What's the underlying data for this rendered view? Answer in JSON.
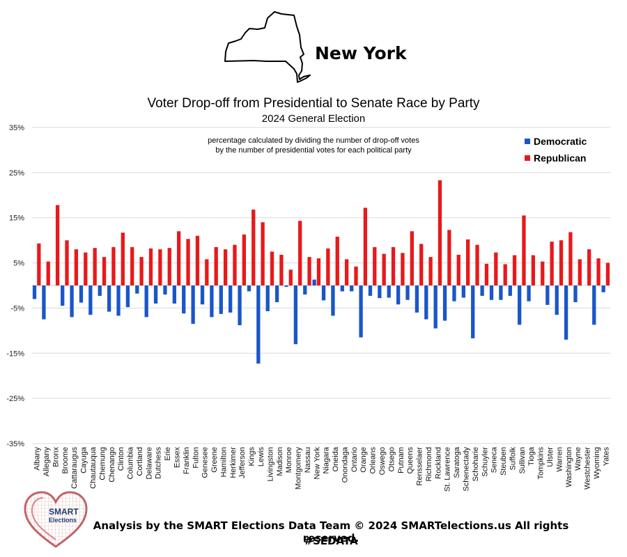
{
  "header": {
    "state_name": "New York"
  },
  "chart_data": {
    "type": "bar",
    "title": "Voter Drop-off from Presidential to Senate Race by Party",
    "subtitle": "2024 General Election",
    "note_line1": "percentage calculated by dividing the number of drop-off votes",
    "note_line2": "by the number of presidential votes for each political party",
    "ylim": [
      -35,
      35
    ],
    "yticks": [
      {
        "value": 35,
        "label": "35%"
      },
      {
        "value": 25,
        "label": "25%"
      },
      {
        "value": 15,
        "label": "15%"
      },
      {
        "value": 5,
        "label": "5%"
      },
      {
        "value": -5,
        "label": "-5%"
      },
      {
        "value": -15,
        "label": "-15%"
      },
      {
        "value": -25,
        "label": "-25%"
      },
      {
        "value": -35,
        "label": "-35%"
      }
    ],
    "legend_position": "top-right",
    "categories": [
      "Albany",
      "Allegany",
      "Bronx",
      "Broome",
      "Cattaraugus",
      "Cayuga",
      "Chautauqua",
      "Chemung",
      "Chenango",
      "Clinton",
      "Columbia",
      "Cortland",
      "Delaware",
      "Dutchess",
      "Erie",
      "Essex",
      "Franklin",
      "Fulton",
      "Genesee",
      "Greene",
      "Hamilton",
      "Herkimer",
      "Jefferson",
      "Kings",
      "Lewis",
      "Livingston",
      "Madison",
      "Monroe",
      "Montgomery",
      "Nassau",
      "New York",
      "Niagara",
      "Oneida",
      "Onondaga",
      "Ontario",
      "Orange",
      "Orleans",
      "Oswego",
      "Otsego",
      "Putnam",
      "Queens",
      "Rensselaer",
      "Richmond",
      "Rockland",
      "St. Lawrence",
      "Saratoga",
      "Schenectady",
      "Schoharie",
      "Schuyler",
      "Seneca",
      "Steuben",
      "Suffolk",
      "Sullivan",
      "Tioga",
      "Tompkins",
      "Ulster",
      "Warren",
      "Washington",
      "Wayne",
      "Westchester",
      "Wyoming",
      "Yates"
    ],
    "series": [
      {
        "name": "Democratic",
        "color": "#1a56c9",
        "values": [
          -3.0,
          -7.5,
          0,
          -4.5,
          -7.0,
          -3.8,
          -6.5,
          -2.3,
          -5.8,
          -6.7,
          -4.8,
          -1.8,
          -7.0,
          -4.0,
          -2.0,
          -4.0,
          -6.2,
          -8.5,
          -4.2,
          -7.0,
          -6.3,
          -6.0,
          -8.8,
          -1.3,
          -17.3,
          -5.7,
          -3.7,
          -0.3,
          -13.0,
          -2.0,
          1.3,
          -3.3,
          -6.7,
          -1.3,
          -1.3,
          -11.5,
          -2.3,
          -2.8,
          -2.7,
          -4.2,
          -3.2,
          -6.0,
          -7.5,
          -9.5,
          -7.8,
          -3.5,
          -2.7,
          -11.7,
          -2.3,
          -3.2,
          -3.2,
          -2.3,
          -8.7,
          -3.5,
          0,
          -4.3,
          -6.5,
          -12.0,
          -3.7,
          0,
          -8.7,
          -1.5
        ]
      },
      {
        "name": "Republican",
        "color": "#e8191b",
        "values": [
          9.3,
          5.3,
          17.8,
          10.0,
          8.0,
          7.3,
          8.3,
          6.3,
          8.5,
          11.7,
          8.5,
          6.3,
          8.2,
          8.0,
          8.3,
          12.0,
          10.3,
          11.0,
          5.8,
          8.5,
          8.0,
          9.0,
          11.3,
          16.8,
          14.0,
          7.5,
          6.8,
          3.5,
          14.3,
          6.3,
          6.0,
          8.2,
          10.8,
          5.8,
          4.2,
          17.2,
          8.5,
          7.0,
          8.5,
          7.2,
          12.0,
          9.2,
          6.3,
          23.3,
          12.3,
          6.8,
          10.2,
          9.0,
          4.8,
          7.3,
          4.7,
          6.7,
          15.5,
          6.7,
          5.3,
          9.7,
          10.0,
          11.8,
          5.8,
          8.0,
          6.0,
          5.0
        ]
      }
    ]
  },
  "footer": {
    "credit": "Analysis by the SMART Elections Data Team © 2024 SMARTelections.us All rights reserved.",
    "hashtag": "#SEDATA"
  },
  "logo": {
    "line1": "SMART",
    "line2": "Elections"
  }
}
